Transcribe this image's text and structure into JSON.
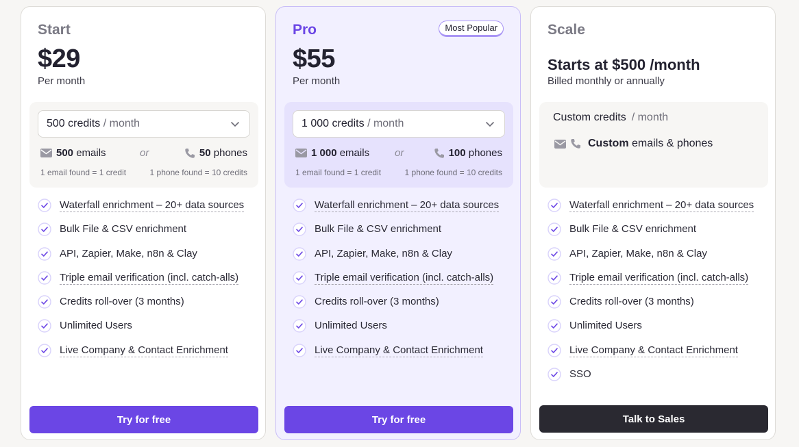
{
  "plans": [
    {
      "name": "Start",
      "price": "$29",
      "price_sub": "Per month",
      "credits_value": "500 credits",
      "credits_unit": "/ month",
      "emails_count": "500",
      "emails_label": "emails",
      "or_label": "or",
      "phones_count": "50",
      "phones_label": "phones",
      "email_note": "1 email found = 1 credit",
      "phone_note": "1 phone found = 10 credits",
      "features": [
        "Waterfall enrichment  – 20+ data sources",
        "Bulk File & CSV enrichment",
        "API, Zapier, Make, n8n & Clay",
        "Triple email verification (incl. catch-alls)",
        "Credits roll-over (3 months)",
        "Unlimited Users",
        "Live Company & Contact Enrichment"
      ],
      "cta": "Try for free"
    },
    {
      "name": "Pro",
      "badge": "Most Popular",
      "price": "$55",
      "price_sub": "Per month",
      "credits_value": "1 000 credits",
      "credits_unit": "/ month",
      "emails_count": "1 000",
      "emails_label": "emails",
      "or_label": "or",
      "phones_count": "100",
      "phones_label": "phones",
      "email_note": "1 email found = 1 credit",
      "phone_note": "1 phone found = 10 credits",
      "features": [
        "Waterfall enrichment  – 20+ data sources",
        "Bulk File & CSV enrichment",
        "API, Zapier, Make, n8n & Clay",
        "Triple email verification (incl. catch-alls)",
        "Credits roll-over (3 months)",
        "Unlimited Users",
        "Live Company & Contact Enrichment"
      ],
      "cta": "Try for free"
    },
    {
      "name": "Scale",
      "price_alt": "Starts at $500 /month",
      "price_sub": "Billed monthly or annually",
      "custom_credits": "Custom credits",
      "credits_unit": "/ month",
      "custom_strong": "Custom",
      "custom_rest": "emails & phones",
      "features": [
        "Waterfall enrichment  – 20+ data sources",
        "Bulk File & CSV enrichment",
        "API, Zapier, Make, n8n & Clay",
        "Triple email verification (incl. catch-alls)",
        "Credits roll-over (3 months)",
        "Unlimited Users",
        "Live Company & Contact Enrichment",
        "SSO"
      ],
      "cta": "Talk to Sales"
    }
  ],
  "icons": {
    "check": "check-circle-icon",
    "email": "envelope-icon",
    "phone": "phone-icon",
    "chevron": "chevron-down-icon"
  },
  "colors": {
    "accent": "#6b46e5",
    "accent_soft": "#f2f0ff",
    "dark_button": "#2a2931"
  }
}
